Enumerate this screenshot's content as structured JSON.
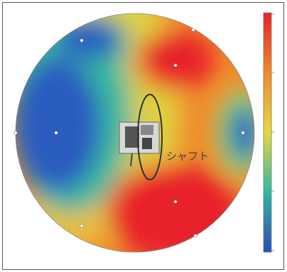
{
  "chart_data": {
    "type": "heatmap",
    "annotation": "シャフト"
  }
}
